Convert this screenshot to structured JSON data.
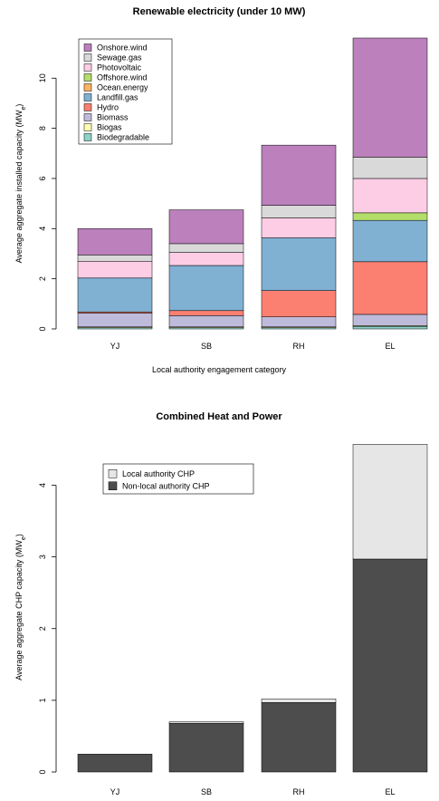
{
  "chart_data": [
    {
      "type": "bar",
      "stacked": true,
      "title": "Renewable electricity (under 10 MW)",
      "xlabel": "Local authority engagement category",
      "ylabel_main": "Average aggregate installed capacity (MW",
      "ylabel_sub": "e",
      "ylabel_close": ")",
      "categories": [
        "YJ",
        "SB",
        "RH",
        "EL"
      ],
      "ylim": [
        0,
        11.6
      ],
      "yticks": [
        "0",
        "2",
        "4",
        "6",
        "8",
        "10"
      ],
      "ytick_values": [
        0,
        2,
        4,
        6,
        8,
        10
      ],
      "legend_position": "top-left",
      "series": [
        {
          "name": "Biodegradable",
          "color": "#8dd3c7",
          "values": [
            0.05,
            0.05,
            0.05,
            0.1
          ]
        },
        {
          "name": "Biogas",
          "color": "#ffffb3",
          "values": [
            0.03,
            0.03,
            0.03,
            0.03
          ]
        },
        {
          "name": "Biomass",
          "color": "#bebada",
          "values": [
            0.55,
            0.45,
            0.4,
            0.45
          ]
        },
        {
          "name": "Hydro",
          "color": "#fb8072",
          "values": [
            0.05,
            0.2,
            1.05,
            2.1
          ]
        },
        {
          "name": "Landfill.gas",
          "color": "#80b1d3",
          "values": [
            1.35,
            1.8,
            2.1,
            1.65
          ]
        },
        {
          "name": "Ocean.energy",
          "color": "#fdb462",
          "values": [
            0.0,
            0.0,
            0.0,
            0.0
          ]
        },
        {
          "name": "Offshore.wind",
          "color": "#b3de69",
          "values": [
            0.0,
            0.0,
            0.0,
            0.3
          ]
        },
        {
          "name": "Photovoltaic",
          "color": "#fccde5",
          "values": [
            0.67,
            0.52,
            0.8,
            1.37
          ]
        },
        {
          "name": "Sewage.gas",
          "color": "#d9d9d9",
          "values": [
            0.25,
            0.35,
            0.5,
            0.85
          ]
        },
        {
          "name": "Onshore.wind",
          "color": "#bc80bd",
          "values": [
            1.05,
            1.35,
            2.4,
            4.75
          ]
        }
      ]
    },
    {
      "type": "bar",
      "stacked": true,
      "title": "Combined Heat and Power",
      "ylabel_main": "Average aggregate CHP capacity (MW",
      "ylabel_sub": "e",
      "ylabel_close": ")",
      "categories": [
        "YJ",
        "SB",
        "RH",
        "EL"
      ],
      "ylim": [
        0,
        4.6
      ],
      "yticks": [
        "0",
        "1",
        "2",
        "3",
        "4"
      ],
      "ytick_values": [
        0,
        1,
        2,
        3,
        4
      ],
      "legend_position": "top-left",
      "series": [
        {
          "name": "Non-local authority CHP",
          "color": "#4d4d4d",
          "values": [
            0.25,
            0.68,
            0.97,
            2.97
          ]
        },
        {
          "name": "Local authority CHP",
          "color": "#e6e6e6",
          "values": [
            0.0,
            0.02,
            0.05,
            1.6
          ]
        }
      ],
      "legend_order": [
        "Local authority CHP",
        "Non-local authority CHP"
      ]
    }
  ]
}
